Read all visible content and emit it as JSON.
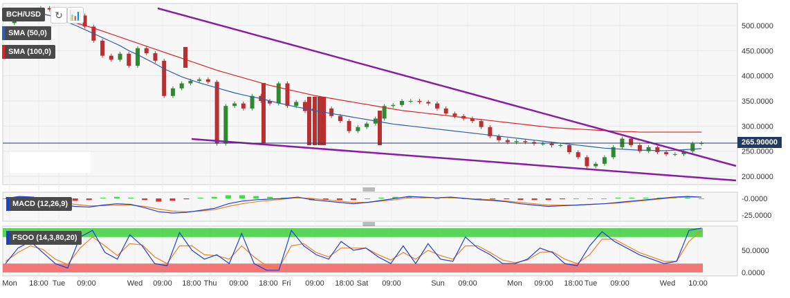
{
  "symbol": "BCH/USD",
  "indicators": {
    "sma50": "SMA (50,0)",
    "sma100": "SMA (100,0)",
    "macd": "MACD (12,26,9)",
    "fsoo": "FSOO (14,3,80,20)"
  },
  "current_price": "265.90000",
  "colors": {
    "up": "#2f8a2f",
    "down": "#b83030",
    "sma50": "#2c5fb0",
    "sma100": "#e02020",
    "trend": "#8b1aa6",
    "macd": "#1a3fd6",
    "signal": "#f08020",
    "fsoo_k": "#1a3fd6",
    "fsoo_d": "#f08020",
    "overbought": "#3ecf3e",
    "oversold": "#f26060"
  },
  "chart_data": {
    "type": "line",
    "main_y_ticks": [
      "500.0000",
      "450.0000",
      "400.0000",
      "350.0000",
      "300.0000",
      "250.0000",
      "200.0000"
    ],
    "macd_y_ticks": [
      "-0.0000",
      "-25.0000"
    ],
    "fsoo_y_ticks": [
      "50.0000",
      "0.0000"
    ],
    "x_ticks": [
      "Mon",
      "18:00",
      "Tue",
      "09:00",
      "Wed",
      "09:00",
      "18:00",
      "Thu",
      "09:00",
      "18:00",
      "Fri",
      "09:00",
      "18:00",
      "Sat",
      "09:00",
      "Sun",
      "09:00",
      "Mon",
      "09:00",
      "18:00",
      "Tue",
      "09:00",
      "Wed",
      "10:00"
    ],
    "price": [
      505,
      512,
      515,
      528,
      535,
      532,
      530,
      525,
      520,
      498,
      470,
      440,
      432,
      444,
      420,
      455,
      445,
      430,
      360,
      375,
      385,
      390,
      393,
      388,
      265,
      340,
      345,
      335,
      360,
      350,
      345,
      385,
      340,
      348,
      330,
      335,
      335,
      320,
      310,
      290,
      298,
      305,
      315,
      340,
      342,
      350,
      350,
      348,
      345,
      335,
      325,
      320,
      315,
      310,
      298,
      280,
      272,
      268,
      270,
      268,
      265,
      265,
      262,
      262,
      248,
      238,
      220,
      225,
      238,
      258,
      275,
      262,
      250,
      258,
      248,
      244,
      244,
      250,
      265,
      266
    ],
    "sma50": [
      532,
      530,
      528,
      526,
      524,
      520,
      514,
      507,
      500,
      492,
      484,
      476,
      468,
      460,
      450,
      442,
      433,
      424,
      414,
      406,
      398,
      392,
      386,
      381,
      376,
      371,
      366,
      362,
      358,
      355,
      350,
      346,
      342,
      338,
      335,
      331,
      328,
      325,
      322,
      319,
      316,
      313,
      310,
      307,
      304,
      302,
      300,
      298,
      296,
      294,
      292,
      290,
      288,
      286,
      284,
      282,
      280,
      278,
      276,
      274,
      272,
      270,
      268,
      266,
      264,
      262,
      260,
      258,
      256,
      255,
      254,
      253,
      252,
      252,
      251,
      251,
      252,
      253,
      254,
      255
    ],
    "sma100": [
      535,
      533,
      531,
      528,
      524,
      520,
      515,
      510,
      505,
      500,
      495,
      489,
      483,
      477,
      471,
      465,
      459,
      453,
      447,
      441,
      435,
      429,
      423,
      417,
      411,
      406,
      401,
      396,
      391,
      386,
      381,
      377,
      373,
      369,
      365,
      361,
      358,
      355,
      352,
      349,
      346,
      343,
      340,
      337,
      334,
      331,
      329,
      327,
      325,
      323,
      321,
      319,
      317,
      315,
      313,
      311,
      309,
      307,
      305,
      303,
      301,
      299,
      297,
      296,
      295,
      294,
      293,
      292,
      291,
      290,
      289,
      289,
      288,
      288,
      288,
      288,
      288,
      288,
      288,
      288
    ],
    "macd": [
      0,
      3,
      2,
      -5,
      -10,
      -12,
      -13,
      -10,
      -8,
      -9,
      -14,
      -20,
      -22,
      -21,
      -18,
      -15,
      -8,
      -4,
      -2,
      -1,
      0,
      2,
      -2,
      -4,
      -6,
      -8,
      -6,
      -3,
      0,
      3,
      2,
      1,
      2,
      0,
      -2,
      -3,
      -5,
      -8,
      -10,
      -12,
      -11,
      -10,
      -9,
      -8,
      -6,
      -4,
      -2,
      0,
      2,
      3,
      2
    ],
    "signal": [
      0,
      1,
      1,
      -2,
      -6,
      -9,
      -11,
      -11,
      -10,
      -10,
      -12,
      -16,
      -19,
      -20,
      -19,
      -17,
      -12,
      -8,
      -5,
      -3,
      -1,
      1,
      0,
      -2,
      -4,
      -6,
      -6,
      -4,
      -2,
      1,
      1,
      1,
      1,
      0,
      -1,
      -2,
      -4,
      -6,
      -8,
      -10,
      -10,
      -10,
      -9,
      -8,
      -7,
      -5,
      -3,
      -1,
      1,
      2,
      2
    ],
    "fsoo_k": [
      20,
      55,
      70,
      45,
      20,
      10,
      80,
      95,
      45,
      30,
      85,
      60,
      20,
      15,
      90,
      50,
      30,
      40,
      20,
      88,
      20,
      5,
      5,
      95,
      60,
      40,
      30,
      70,
      50,
      55,
      35,
      20,
      60,
      20,
      65,
      30,
      25,
      80,
      55,
      40,
      20,
      20,
      30,
      55,
      45,
      20,
      15,
      60,
      92,
      70,
      55,
      40,
      30,
      20,
      25,
      95,
      100
    ],
    "fsoo_d": [
      25,
      45,
      60,
      52,
      30,
      18,
      55,
      80,
      60,
      38,
      65,
      62,
      35,
      20,
      60,
      60,
      40,
      38,
      30,
      60,
      35,
      15,
      10,
      60,
      65,
      45,
      35,
      55,
      55,
      55,
      40,
      28,
      45,
      30,
      50,
      38,
      30,
      60,
      60,
      45,
      28,
      22,
      28,
      45,
      47,
      30,
      20,
      40,
      75,
      75,
      60,
      45,
      35,
      25,
      25,
      70,
      95
    ]
  }
}
